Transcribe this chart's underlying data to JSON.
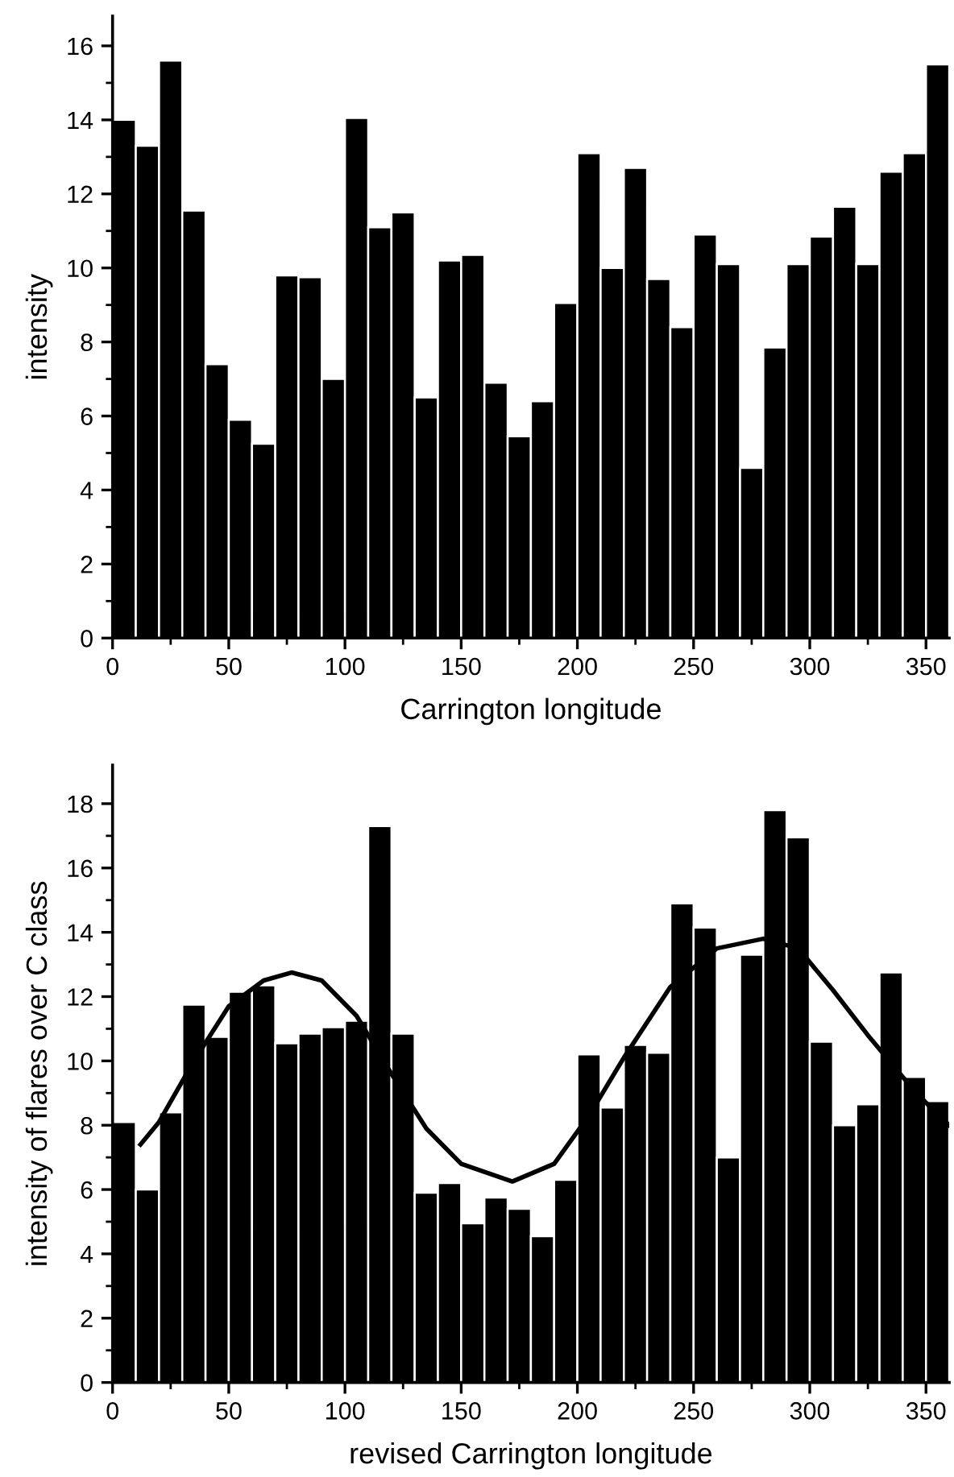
{
  "chart_data": [
    {
      "type": "histogram",
      "xlabel": "Carrington longitude",
      "ylabel": "intensity",
      "color": "#000000",
      "bins": [
        0,
        10,
        20,
        30,
        40,
        50,
        60,
        70,
        80,
        90,
        100,
        110,
        120,
        130,
        140,
        150,
        160,
        170,
        180,
        190,
        200,
        210,
        220,
        230,
        240,
        250,
        260,
        270,
        280,
        290,
        300,
        310,
        320,
        330,
        340,
        350,
        360
      ],
      "values": [
        14.0,
        13.3,
        15.6,
        11.55,
        7.4,
        5.9,
        5.25,
        9.8,
        9.75,
        7.0,
        14.05,
        11.1,
        11.5,
        6.5,
        10.2,
        10.35,
        6.9,
        5.45,
        6.4,
        9.05,
        13.1,
        10.0,
        12.7,
        9.7,
        8.4,
        10.9,
        10.1,
        4.6,
        7.85,
        10.1,
        10.85,
        11.65,
        10.1,
        12.6,
        13.1,
        15.5
      ],
      "xlim": [
        0,
        360
      ],
      "xticks": [
        0,
        {
          "value": 25,
          "label": null
        },
        50,
        {
          "value": 75,
          "label": null
        },
        100,
        {
          "value": 125,
          "label": null
        },
        150,
        {
          "value": 175,
          "label": null
        },
        200,
        {
          "value": 225,
          "label": null
        },
        250,
        {
          "value": 275,
          "label": null
        },
        300,
        {
          "value": 325,
          "label": null
        },
        350
      ],
      "ylim": [
        0,
        16.8
      ],
      "yticks": [
        0,
        {
          "value": 1,
          "label": null
        },
        2,
        {
          "value": 3,
          "label": null
        },
        4,
        {
          "value": 5,
          "label": null
        },
        6,
        {
          "value": 7,
          "label": null
        },
        8,
        {
          "value": 9,
          "label": null
        },
        10,
        {
          "value": 11,
          "label": null
        },
        12,
        {
          "value": 13,
          "label": null
        },
        14,
        {
          "value": 15,
          "label": null
        },
        16
      ]
    },
    {
      "type": "histogram",
      "xlabel": "revised Carrington longitude",
      "ylabel": "intensity of flares over C class",
      "bins": [
        0,
        10,
        20,
        30,
        40,
        50,
        60,
        70,
        80,
        90,
        100,
        110,
        120,
        130,
        140,
        150,
        160,
        170,
        180,
        190,
        200,
        210,
        220,
        230,
        240,
        250,
        260,
        270,
        280,
        290,
        300,
        310,
        320,
        330,
        340,
        350,
        360
      ],
      "series": [
        {
          "color": "#000000",
          "values": [
            8.1,
            6.0,
            8.4,
            11.75,
            10.75,
            12.15,
            12.35,
            10.55,
            10.85,
            11.05,
            11.25,
            17.3,
            10.85,
            5.9,
            6.2,
            4.95,
            5.75,
            5.4,
            4.55,
            6.3,
            10.2,
            8.55,
            10.5,
            10.25,
            14.9,
            14.15,
            7.0,
            13.3,
            17.8,
            16.95,
            10.6,
            8.0,
            8.65,
            12.75,
            9.5,
            8.75
          ]
        },
        {
          "type": "line",
          "color": "#000000",
          "marker": "none",
          "line_style": "solid",
          "x": [
            12,
            20,
            35,
            50,
            65,
            77,
            90,
            105,
            120,
            135,
            150,
            172,
            190,
            205,
            220,
            240,
            260,
            280,
            295,
            310,
            325,
            340,
            350,
            360
          ],
          "values": [
            7.4,
            8.1,
            10.0,
            11.7,
            12.5,
            12.75,
            12.5,
            11.4,
            9.6,
            7.9,
            6.8,
            6.25,
            6.8,
            8.3,
            10.1,
            12.3,
            13.5,
            13.8,
            13.5,
            12.2,
            10.8,
            9.5,
            8.7,
            8.0
          ]
        }
      ],
      "xlim": [
        0,
        360
      ],
      "xticks": [
        0,
        {
          "value": 25,
          "label": null
        },
        50,
        {
          "value": 75,
          "label": null
        },
        100,
        {
          "value": 125,
          "label": null
        },
        150,
        {
          "value": 175,
          "label": null
        },
        200,
        {
          "value": 225,
          "label": null
        },
        250,
        {
          "value": 275,
          "label": null
        },
        300,
        {
          "value": 325,
          "label": null
        },
        350
      ],
      "ylim": [
        0,
        19.2
      ],
      "yticks": [
        0,
        {
          "value": 1,
          "label": null
        },
        2,
        {
          "value": 3,
          "label": null
        },
        4,
        {
          "value": 5,
          "label": null
        },
        6,
        {
          "value": 7,
          "label": null
        },
        8,
        {
          "value": 9,
          "label": null
        },
        10,
        {
          "value": 11,
          "label": null
        },
        12,
        {
          "value": 13,
          "label": null
        },
        14,
        {
          "value": 15,
          "label": null
        },
        16,
        {
          "value": 17,
          "label": null
        },
        18
      ]
    }
  ]
}
